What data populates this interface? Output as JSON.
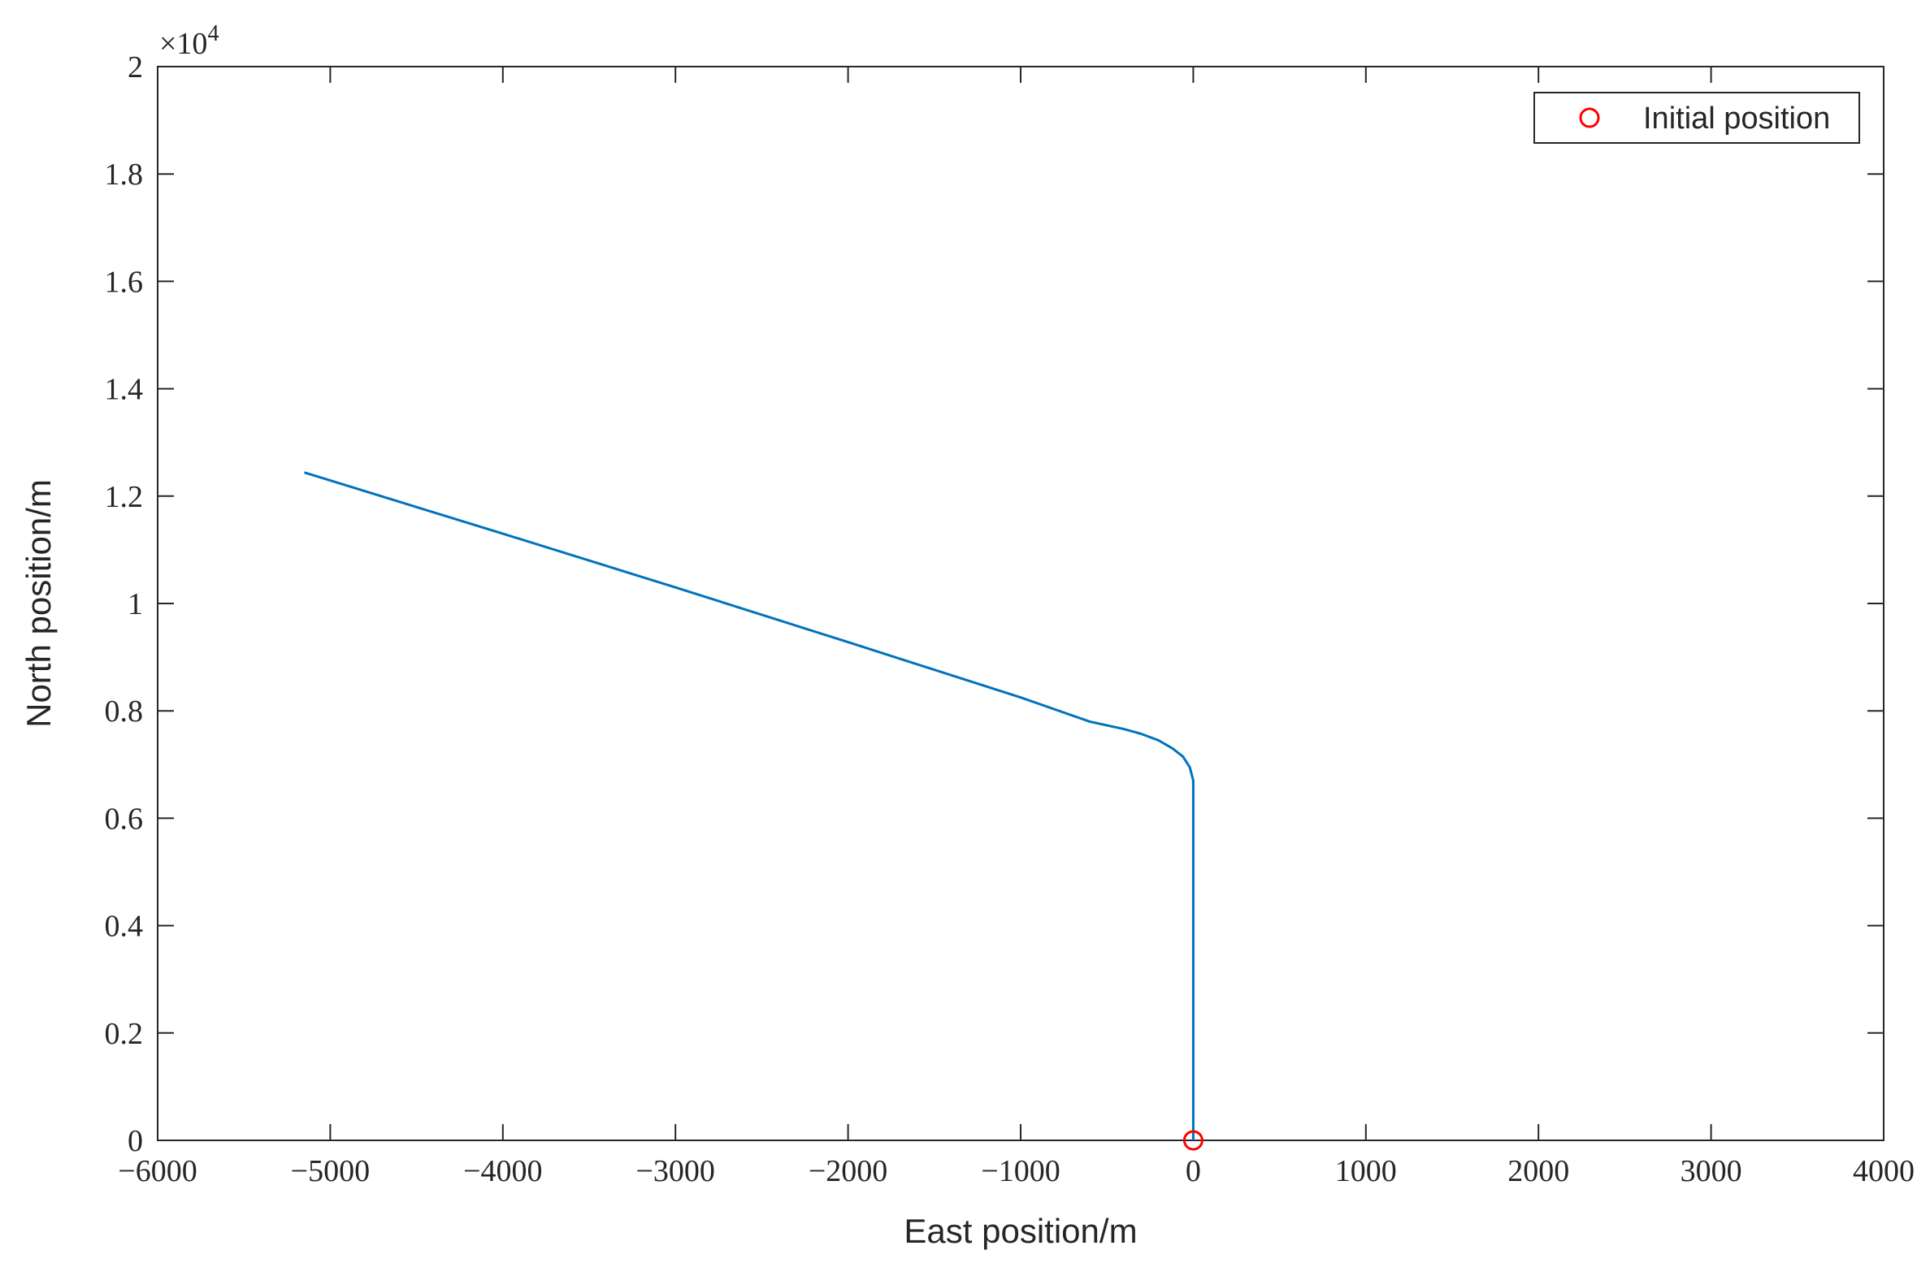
{
  "chart_data": {
    "type": "line",
    "x_label": "East position/m",
    "y_label": "North position/m",
    "y_multiplier": {
      "base": "×10",
      "exponent": "4"
    },
    "xlim": [
      -6000,
      4000
    ],
    "xticks": [
      {
        "value": -6000,
        "label": "−6000"
      },
      {
        "value": -5000,
        "label": "−5000"
      },
      {
        "value": -4000,
        "label": "−4000"
      },
      {
        "value": -3000,
        "label": "−3000"
      },
      {
        "value": -2000,
        "label": "−2000"
      },
      {
        "value": -1000,
        "label": "−1000"
      },
      0,
      1000,
      2000,
      3000,
      4000
    ],
    "ylim": [
      0,
      2
    ],
    "yticks": [
      0,
      0.2,
      0.4,
      0.6,
      0.8,
      1,
      1.2,
      1.4,
      1.6,
      1.8,
      2
    ],
    "legend": "upper right",
    "series": [
      {
        "color": "#0072bd",
        "style": "line",
        "x": [
          0,
          0,
          -20,
          -60,
          -120,
          -200,
          -300,
          -400,
          -600,
          -1000,
          -2000,
          -3000,
          -4000,
          -5150
        ],
        "values": [
          0,
          0.67,
          0.695,
          0.715,
          0.73,
          0.745,
          0.757,
          0.766,
          0.78,
          0.825,
          0.928,
          1.03,
          1.13,
          1.244
        ]
      },
      {
        "name": "Initial position",
        "color": "#ff0000",
        "style": "circle",
        "x": [
          0
        ],
        "values": [
          0
        ]
      }
    ]
  }
}
